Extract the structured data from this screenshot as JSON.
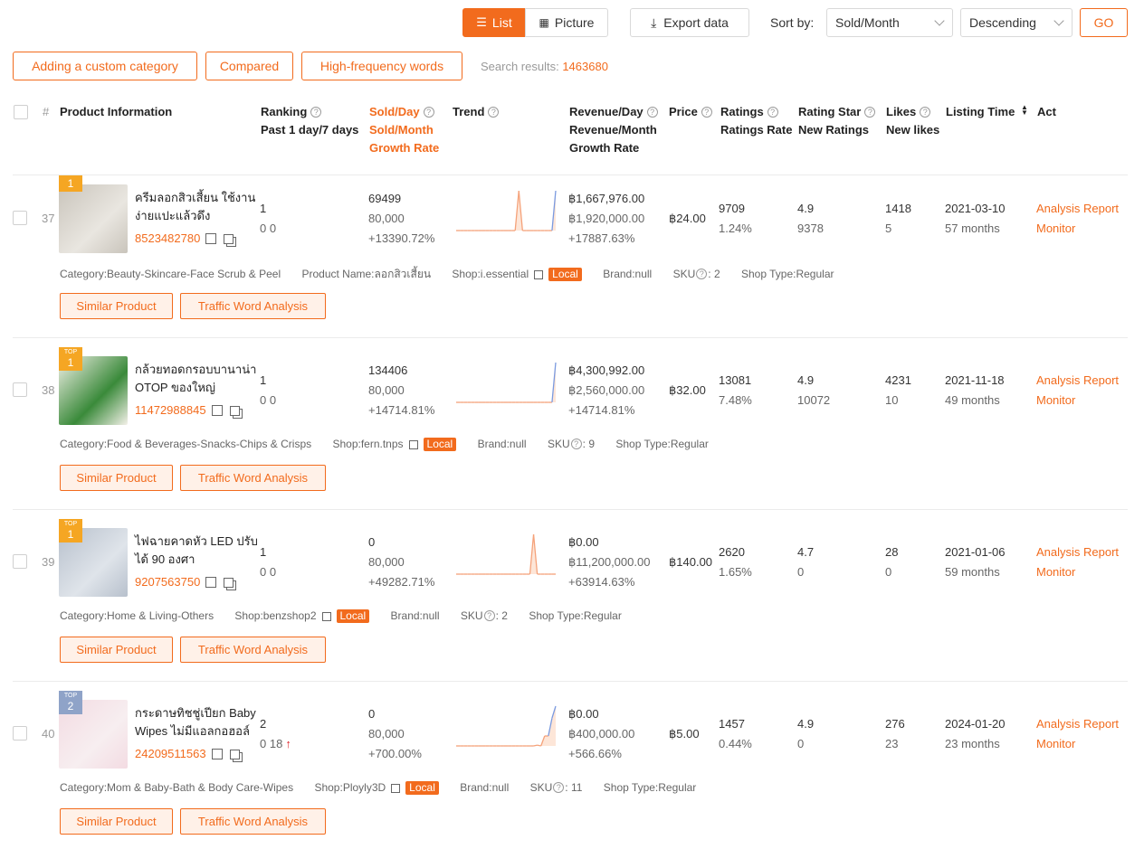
{
  "toolbar": {
    "list_label": "List",
    "picture_label": "Picture",
    "export_label": "Export data",
    "sort_label": "Sort by:",
    "sort_value": "Sold/Month",
    "order_value": "Descending",
    "go_label": "GO",
    "custom_category_label": "Adding a custom category",
    "compared_label": "Compared",
    "hf_words_label": "High-frequency words",
    "search_results_label": "Search results:",
    "search_results_count": "1463680"
  },
  "header": {
    "hash": "#",
    "product_info": "Product Information",
    "ranking": "Ranking",
    "ranking_sub": "Past 1 day/7 days",
    "sold_day": "Sold/Day",
    "sold_month": "Sold/Month",
    "growth_rate": "Growth Rate",
    "trend": "Trend",
    "revenue_day": "Revenue/Day",
    "revenue_month": "Revenue/Month",
    "revenue_growth": "Growth Rate",
    "price": "Price",
    "ratings": "Ratings",
    "ratings_rate": "Ratings Rate",
    "rating_star": "Rating Star",
    "new_ratings": "New Ratings",
    "likes": "Likes",
    "new_likes": "New likes",
    "listing_time": "Listing Time",
    "act": "Act"
  },
  "common": {
    "category_k": "Category:",
    "product_name_k": "Product Name:",
    "shop_k": "Shop:",
    "brand_k": "Brand:",
    "sku_k": "SKU",
    "shop_type_k": "Shop Type:",
    "local": "Local",
    "similar": "Similar Product",
    "traffic": "Traffic Word Analysis",
    "analysis": "Analysis Report",
    "monitor": "Monitor"
  },
  "rows": [
    {
      "num": "37",
      "badge_top": "",
      "badge_num": "1",
      "name": "ครีมลอกสิวเสี้ยน ใช้งานง่ายแปะแล้วดึง",
      "id": "8523482780",
      "rank_1d": "1",
      "rank_7d": "0 0",
      "sold_day": "69499",
      "sold_month": "80,000",
      "sold_growth": "+13390.72%",
      "rev_day": "฿1,667,976.00",
      "rev_month": "฿1,920,000.00",
      "rev_growth": "+17887.63%",
      "price": "฿24.00",
      "ratings": "9709",
      "ratings_rate": "1.24%",
      "star": "4.9",
      "new_ratings": "9378",
      "likes": "1418",
      "new_likes": "5",
      "listing": "2021-03-10",
      "age": "57 months",
      "category": "Beauty-Skincare-Face Scrub & Peel",
      "product_name": "ลอกสิวเสี้ยน",
      "shop": "i.essential",
      "brand": "null",
      "sku": "2",
      "shop_type": "Regular",
      "trend": [
        0,
        0,
        0,
        0,
        0,
        0,
        0,
        0,
        0,
        0,
        0,
        0,
        0,
        0,
        0,
        0,
        0,
        1,
        0,
        0,
        0,
        0,
        0,
        0,
        0,
        0,
        0,
        1
      ]
    },
    {
      "num": "38",
      "badge_top": "TOP",
      "badge_num": "1",
      "name": "กล้วยทอดกรอบบานาน่า OTOP ของใหญ่",
      "id": "11472988845",
      "rank_1d": "1",
      "rank_7d": "0 0",
      "sold_day": "134406",
      "sold_month": "80,000",
      "sold_growth": "+14714.81%",
      "rev_day": "฿4,300,992.00",
      "rev_month": "฿2,560,000.00",
      "rev_growth": "+14714.81%",
      "price": "฿32.00",
      "ratings": "13081",
      "ratings_rate": "7.48%",
      "star": "4.9",
      "new_ratings": "10072",
      "likes": "4231",
      "new_likes": "10",
      "listing": "2021-11-18",
      "age": "49 months",
      "category": "Food & Beverages-Snacks-Chips & Crisps",
      "product_name": "",
      "shop": "fern.tnps",
      "brand": "null",
      "sku": "9",
      "shop_type": "Regular",
      "trend": [
        0,
        0,
        0,
        0,
        0,
        0,
        0,
        0,
        0,
        0,
        0,
        0,
        0,
        0,
        0,
        0,
        0,
        0,
        0,
        0,
        0,
        0,
        0,
        0,
        0,
        0,
        0,
        1
      ]
    },
    {
      "num": "39",
      "badge_top": "TOP",
      "badge_num": "1",
      "name": "ไฟฉายคาดหัว LED ปรับได้ 90 องศา",
      "id": "9207563750",
      "rank_1d": "1",
      "rank_7d": "0 0",
      "sold_day": "0",
      "sold_month": "80,000",
      "sold_growth": "+49282.71%",
      "rev_day": "฿0.00",
      "rev_month": "฿11,200,000.00",
      "rev_growth": "+63914.63%",
      "price": "฿140.00",
      "ratings": "2620",
      "ratings_rate": "1.65%",
      "star": "4.7",
      "new_ratings": "0",
      "likes": "28",
      "new_likes": "0",
      "listing": "2021-01-06",
      "age": "59 months",
      "category": "Home & Living-Others",
      "product_name": "",
      "shop": "benzshop2",
      "brand": "null",
      "sku": "2",
      "shop_type": "Regular",
      "trend": [
        0,
        0,
        0,
        0,
        0,
        0,
        0,
        0,
        0,
        0,
        0,
        0,
        0,
        0,
        0,
        0,
        0,
        0,
        0,
        0,
        0,
        1,
        0,
        0,
        0,
        0,
        0,
        0
      ]
    },
    {
      "num": "40",
      "badge_top": "TOP",
      "badge_num": "2",
      "name": "กระดาษทิชชู่เปียก Baby Wipes ไม่มีแอลกอฮอล์",
      "id": "24209511563",
      "rank_1d": "2",
      "rank_7d": "0 18",
      "sold_day": "0",
      "sold_month": "80,000",
      "sold_growth": "+700.00%",
      "rev_day": "฿0.00",
      "rev_month": "฿400,000.00",
      "rev_growth": "+566.66%",
      "price": "฿5.00",
      "ratings": "1457",
      "ratings_rate": "0.44%",
      "star": "4.9",
      "new_ratings": "0",
      "likes": "276",
      "new_likes": "23",
      "listing": "2024-01-20",
      "age": "23 months",
      "category": "Mom & Baby-Bath & Body Care-Wipes",
      "product_name": "",
      "shop": "Ployly3D",
      "brand": "null",
      "sku": "11",
      "shop_type": "Regular",
      "trend": [
        0,
        0,
        0,
        0,
        0,
        0,
        0,
        0,
        0,
        0,
        0,
        0,
        0,
        0,
        0,
        0,
        0,
        0,
        0,
        0,
        0,
        0,
        0.02,
        0,
        0.25,
        0.25,
        0.7,
        1
      ]
    }
  ],
  "colors": {
    "accent": "#f26b1d",
    "badge_gold": "#f5a623",
    "badge_silver": "#8fa3c8",
    "trend_line": "#f5a27a",
    "trend_rise": "#7a9ae0"
  }
}
